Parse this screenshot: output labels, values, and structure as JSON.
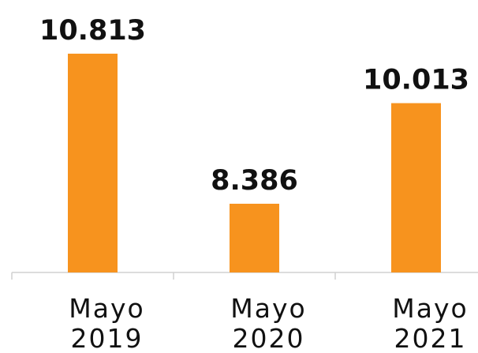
{
  "chart_data": {
    "type": "bar",
    "categories": [
      "Mayo 2019",
      "Mayo 2020",
      "Mayo 2021"
    ],
    "values": [
      10813,
      8386,
      10013
    ],
    "value_labels": [
      "10.813",
      "8.386",
      "10.013"
    ],
    "color": "#f7931e",
    "ylim": [
      7275,
      11681
    ]
  }
}
